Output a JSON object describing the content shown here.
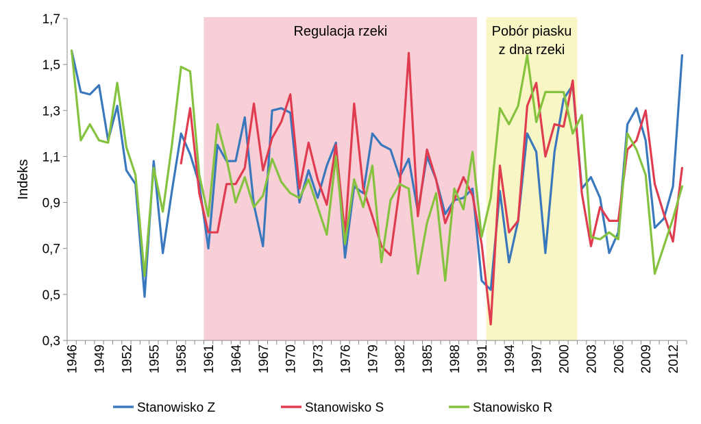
{
  "chart_data": {
    "type": "line",
    "ylabel": "Indeks",
    "xlabel": "",
    "ylim": [
      0.3,
      1.7
    ],
    "yticks": [
      "0,3",
      "0,5",
      "0,7",
      "0,9",
      "1,1",
      "1,3",
      "1,5",
      "1,7"
    ],
    "xlim": [
      1946,
      2013
    ],
    "xticks": [
      "1946",
      "1949",
      "1952",
      "1955",
      "1958",
      "1961",
      "1964",
      "1967",
      "1970",
      "1973",
      "1976",
      "1979",
      "1982",
      "1985",
      "1988",
      "1991",
      "1994",
      "1997",
      "2000",
      "2003",
      "2006",
      "2009",
      "2012"
    ],
    "grid": false,
    "legend_position": "bottom",
    "periods": [
      {
        "label_lines": [
          "Regulacja rzeki"
        ],
        "from": 1960.5,
        "to": 1990.5,
        "color": "#f9cfd7"
      },
      {
        "label_lines": [
          "Pobór piasku",
          "z dna rzeki"
        ],
        "from": 1991.5,
        "to": 2001.5,
        "color": "#f7f6c4"
      }
    ],
    "x": [
      1946,
      1947,
      1948,
      1949,
      1950,
      1951,
      1952,
      1953,
      1954,
      1955,
      1956,
      1957,
      1958,
      1959,
      1960,
      1961,
      1962,
      1963,
      1964,
      1965,
      1966,
      1967,
      1968,
      1969,
      1970,
      1971,
      1972,
      1973,
      1974,
      1975,
      1976,
      1977,
      1978,
      1979,
      1980,
      1981,
      1982,
      1983,
      1984,
      1985,
      1986,
      1987,
      1988,
      1989,
      1990,
      1991,
      1992,
      1993,
      1994,
      1995,
      1996,
      1997,
      1998,
      1999,
      2000,
      2001,
      2002,
      2003,
      2004,
      2005,
      2006,
      2007,
      2008,
      2009,
      2010,
      2011,
      2012,
      2013
    ],
    "series": [
      {
        "name": "Stanowisko Z",
        "color": "#3a78be",
        "values": [
          1.56,
          1.38,
          1.37,
          1.41,
          1.17,
          1.32,
          1.04,
          0.98,
          0.49,
          1.08,
          0.68,
          0.95,
          1.2,
          1.11,
          0.98,
          0.7,
          1.15,
          1.08,
          1.08,
          1.27,
          0.89,
          0.71,
          1.3,
          1.31,
          1.29,
          0.9,
          1.04,
          0.92,
          1.06,
          1.16,
          0.66,
          0.97,
          0.94,
          1.2,
          1.15,
          1.13,
          1.01,
          1.09,
          0.86,
          1.1,
          1.0,
          0.85,
          0.91,
          0.92,
          0.96,
          0.56,
          0.52,
          0.95,
          0.64,
          0.82,
          1.2,
          1.12,
          0.68,
          1.12,
          1.35,
          1.41,
          0.96,
          1.01,
          0.92,
          0.68,
          0.77,
          1.24,
          1.31,
          1.17,
          0.79,
          0.83,
          0.97,
          1.54
        ]
      },
      {
        "name": "Stanowisko S",
        "color": "#e03c50",
        "values": [
          null,
          null,
          null,
          null,
          null,
          null,
          null,
          null,
          null,
          null,
          null,
          null,
          1.07,
          1.31,
          0.94,
          0.77,
          0.77,
          0.98,
          0.98,
          1.05,
          1.33,
          1.04,
          1.18,
          1.25,
          1.37,
          0.96,
          1.16,
          1.0,
          0.89,
          1.15,
          0.76,
          1.33,
          0.96,
          0.84,
          0.71,
          0.67,
          0.96,
          1.55,
          0.84,
          1.13,
          1.0,
          0.81,
          0.91,
          1.01,
          0.93,
          0.72,
          0.37,
          1.06,
          0.77,
          0.82,
          1.32,
          1.42,
          1.1,
          1.24,
          1.23,
          1.43,
          0.94,
          0.71,
          0.88,
          0.82,
          0.82,
          1.13,
          1.17,
          1.3,
          0.98,
          0.85,
          0.73,
          1.05
        ]
      },
      {
        "name": "Stanowisko R",
        "color": "#85c23f",
        "values": [
          1.56,
          1.17,
          1.24,
          1.17,
          1.16,
          1.42,
          1.14,
          1.02,
          0.58,
          1.05,
          0.86,
          1.15,
          1.49,
          1.47,
          1.02,
          0.84,
          1.24,
          1.09,
          0.9,
          1.01,
          0.88,
          0.93,
          1.09,
          0.99,
          0.94,
          0.92,
          1.0,
          0.88,
          0.76,
          1.1,
          0.72,
          1.0,
          0.88,
          1.06,
          0.64,
          0.91,
          0.98,
          0.96,
          0.59,
          0.81,
          0.94,
          0.56,
          0.96,
          0.87,
          1.12,
          0.75,
          0.92,
          1.31,
          1.24,
          1.32,
          1.54,
          1.25,
          1.38,
          1.38,
          1.38,
          1.2,
          1.28,
          0.75,
          0.74,
          0.77,
          0.74,
          1.2,
          1.13,
          1.02,
          0.59,
          0.71,
          0.83,
          0.97
        ]
      }
    ]
  }
}
